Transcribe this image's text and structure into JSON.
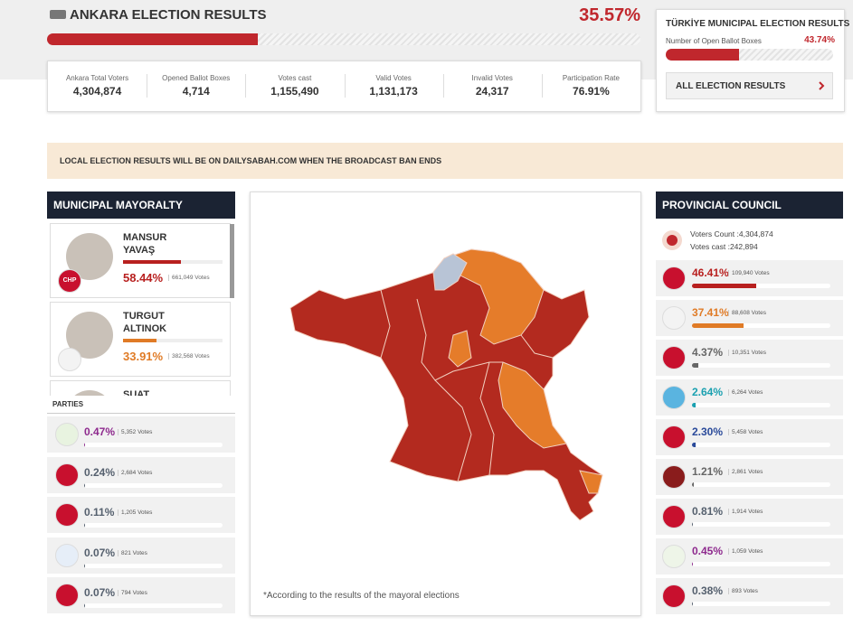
{
  "header": {
    "title": "ANKARA ELECTION RESULTS",
    "percent": {
      "value": 35.57,
      "label": "35.57%"
    }
  },
  "stats": [
    {
      "label": "Ankara Total Voters",
      "value": "4,304,874"
    },
    {
      "label": "Opened Ballot Boxes",
      "value": "4,714"
    },
    {
      "label": "Votes cast",
      "value": "1,155,490"
    },
    {
      "label": "Valid Votes",
      "value": "1,131,173"
    },
    {
      "label": "Invalid Votes",
      "value": "24,317"
    },
    {
      "label": "Participation Rate",
      "value": "76.91%"
    }
  ],
  "turkiye": {
    "title": "TÜRKİYE MUNICIPAL ELECTION RESULTS",
    "label": "Number of Open Ballot Boxes",
    "percent": {
      "value": 43.74,
      "label": "43.74%"
    },
    "button": "ALL ELECTION RESULTS"
  },
  "banner": "LOCAL ELECTION RESULTS WILL BE ON DAILYSABAH.COM WHEN THE BROADCAST BAN ENDS",
  "mayoralty": {
    "title": "MUNICIPAL MAYORALTY",
    "candidates": [
      {
        "name": [
          "MANSUR",
          "YAVAŞ"
        ],
        "party": "CHP",
        "percent": {
          "value": 58.44,
          "label": "58.44%"
        },
        "votes": "661,049 Votes",
        "color": "#b8201f",
        "logo": "#c8102e"
      },
      {
        "name": [
          "TURGUT",
          "ALTINOK"
        ],
        "percent": {
          "value": 33.91,
          "label": "33.91%"
        },
        "votes": "382,568 Votes",
        "color": "#e07b26",
        "logo": "#f3f3f3"
      },
      {
        "name": [
          "SUAT"
        ]
      }
    ]
  },
  "parties": {
    "title": "PARTIES",
    "rows": [
      {
        "percent": {
          "value": 0.47,
          "label": "0.47%"
        },
        "votes": "5,352 Votes",
        "color": "#8e2a8e",
        "logo": "#e8f3e0"
      },
      {
        "percent": {
          "value": 0.24,
          "label": "0.24%"
        },
        "votes": "2,684 Votes",
        "color": "#55606e",
        "logo": "#c8102e"
      },
      {
        "percent": {
          "value": 0.11,
          "label": "0.11%"
        },
        "votes": "1,205 Votes",
        "color": "#55606e",
        "logo": "#c8102e"
      },
      {
        "percent": {
          "value": 0.07,
          "label": "0.07%"
        },
        "votes": "821 Votes",
        "color": "#55606e",
        "logo": "#e6eef8"
      },
      {
        "percent": {
          "value": 0.07,
          "label": "0.07%"
        },
        "votes": "794 Votes",
        "color": "#55606e",
        "logo": "#c8102e"
      }
    ]
  },
  "map": {
    "note": "*According to the results of the mayoral elections"
  },
  "council": {
    "title": "PROVINCIAL COUNCIL",
    "voters": "Voters Count :4,304,874",
    "cast": "Votes cast :242,894",
    "rows": [
      {
        "percent": {
          "value": 46.41,
          "label": "46.41%"
        },
        "votes": "109,940 Votes",
        "color": "#b8201f",
        "logo": "#c8102e"
      },
      {
        "percent": {
          "value": 37.41,
          "label": "37.41%"
        },
        "votes": "88,608 Votes",
        "color": "#e07b26",
        "logo": "#f3f3f3"
      },
      {
        "percent": {
          "value": 4.37,
          "label": "4.37%"
        },
        "votes": "10,351 Votes",
        "color": "#666666",
        "logo": "#c8102e"
      },
      {
        "percent": {
          "value": 2.64,
          "label": "2.64%"
        },
        "votes": "6,264 Votes",
        "color": "#1aa0b0",
        "logo": "#5ab4e0"
      },
      {
        "percent": {
          "value": 2.3,
          "label": "2.30%"
        },
        "votes": "5,458 Votes",
        "color": "#2a4a9a",
        "logo": "#c8102e"
      },
      {
        "percent": {
          "value": 1.21,
          "label": "1.21%"
        },
        "votes": "2,861 Votes",
        "color": "#666666",
        "logo": "#8a1c1c"
      },
      {
        "percent": {
          "value": 0.81,
          "label": "0.81%"
        },
        "votes": "1,914 Votes",
        "color": "#55606e",
        "logo": "#c8102e"
      },
      {
        "percent": {
          "value": 0.45,
          "label": "0.45%"
        },
        "votes": "1,059 Votes",
        "color": "#8e2a8e",
        "logo": "#eef5e8"
      },
      {
        "percent": {
          "value": 0.38,
          "label": "0.38%"
        },
        "votes": "893 Votes",
        "color": "#55606e",
        "logo": "#c8102e"
      }
    ]
  }
}
